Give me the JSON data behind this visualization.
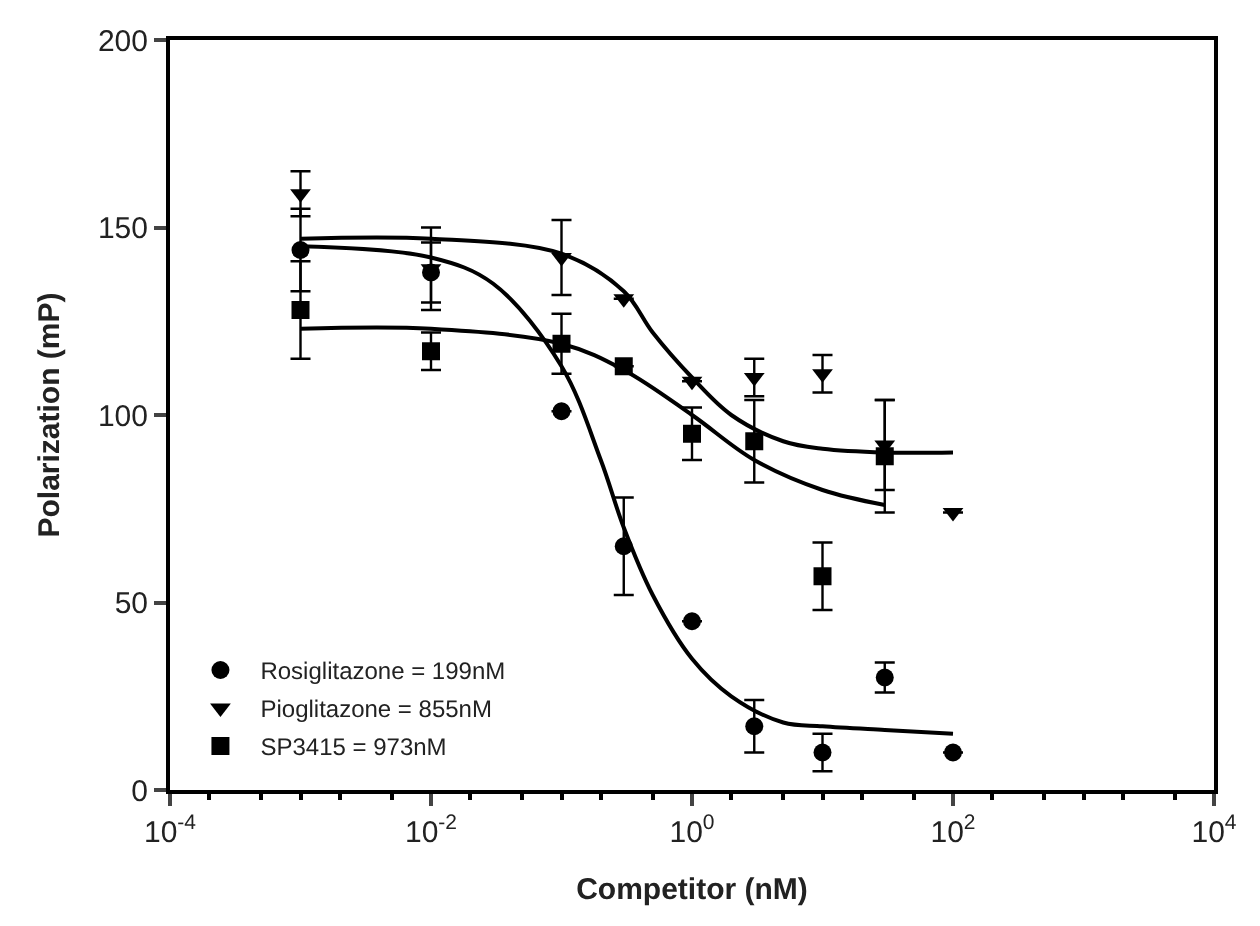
{
  "chart_data": {
    "type": "scatter",
    "xlabel": "Competitor (nM)",
    "ylabel": "Polarization (mP)",
    "log": "x",
    "xlim": [
      0.0001,
      10000
    ],
    "xticks": [
      {
        "value": 0.0001,
        "label": "10$^{-4}$"
      },
      {
        "value": 0.01,
        "label": "10$^{-2}$"
      },
      {
        "value": 1,
        "label": "10$^{0}$"
      },
      {
        "value": 100,
        "label": "10$^{2}$"
      },
      {
        "value": 10000,
        "label": "10$^{4}$"
      }
    ],
    "ylim": [
      0,
      200
    ],
    "yticks": [
      0,
      50,
      100,
      150,
      200
    ],
    "grid": false,
    "legend": "bottom left",
    "series": [
      {
        "name": "Rosiglitazone = 199nM",
        "color": "#000000",
        "marker": "circle",
        "x": [
          0.001,
          0.01,
          0.1,
          0.3,
          1,
          3,
          10,
          30,
          100
        ],
        "values": [
          144,
          138,
          101,
          65,
          45,
          17,
          10,
          30,
          10
        ],
        "errors": [
          11,
          8,
          null,
          13,
          null,
          7,
          5,
          4,
          null
        ]
      },
      {
        "name": "Pioglitazone = 855nM",
        "color": "#000000",
        "marker": "triangle",
        "x": [
          0.001,
          0.01,
          0.1,
          0.3,
          1,
          3,
          10,
          30,
          100
        ],
        "values": [
          159,
          139,
          142,
          131,
          109,
          110,
          111,
          92,
          74
        ],
        "errors": [
          6,
          11,
          10,
          null,
          null,
          5,
          5,
          12,
          null
        ]
      },
      {
        "name": "SP3415 = 973nM",
        "color": "#000000",
        "marker": "square",
        "x": [
          0.001,
          0.01,
          0.1,
          0.3,
          1,
          3,
          10,
          30
        ],
        "values": [
          128,
          117,
          119,
          113,
          95,
          93,
          57,
          89
        ],
        "errors": [
          13,
          5,
          8,
          null,
          7,
          11,
          9,
          15
        ]
      },
      {
        "type": "line",
        "color": "#000000",
        "marker": "none",
        "x": [
          0.001,
          0.01,
          0.03,
          0.1,
          0.2,
          0.3,
          0.5,
          1,
          2,
          5,
          10,
          30,
          100
        ],
        "values": [
          145,
          142,
          135,
          113,
          88,
          70,
          52,
          35,
          25,
          18,
          17,
          16,
          15
        ]
      },
      {
        "type": "line",
        "color": "#000000",
        "marker": "none",
        "x": [
          0.001,
          0.01,
          0.1,
          0.3,
          0.5,
          1,
          2,
          5,
          10,
          30,
          100
        ],
        "values": [
          147,
          147,
          143,
          133,
          122,
          110,
          100,
          93,
          91,
          90,
          90
        ]
      },
      {
        "type": "line",
        "color": "#000000",
        "marker": "none",
        "x": [
          0.001,
          0.01,
          0.1,
          0.3,
          1,
          3,
          10,
          30
        ],
        "values": [
          123,
          123,
          119,
          112,
          100,
          88,
          80,
          76
        ]
      }
    ]
  }
}
